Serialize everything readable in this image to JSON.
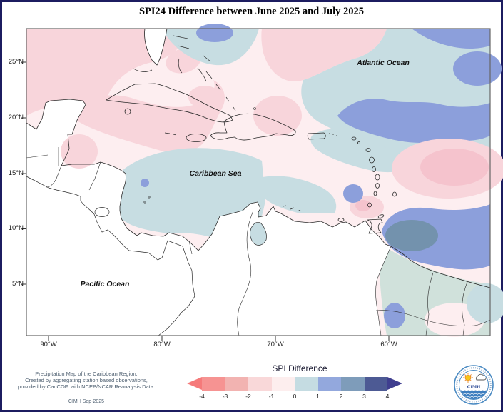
{
  "title": "SPI24 Difference between June 2025 and July 2025",
  "map": {
    "labels": {
      "atlantic": "Atlantic Ocean",
      "caribbean": "Caribbean Sea",
      "pacific": "Pacific Ocean"
    },
    "lat_ticks": [
      "25°N",
      "20°N",
      "15°N",
      "10°N",
      "5°N"
    ],
    "lon_ticks": [
      "90°W",
      "80°W",
      "70°W",
      "60°W"
    ]
  },
  "legend": {
    "title": "SPI Difference",
    "ticks": [
      "-4",
      "-3",
      "-2",
      "-1",
      "0",
      "1",
      "2",
      "3",
      "4"
    ],
    "segments": [
      "#f69392",
      "#f2b3b1",
      "#f9d8d9",
      "#fdeeee",
      "#c5dce2",
      "#93a8dd",
      "#7e9cba",
      "#4d5a94"
    ],
    "arrow_left": "#f57a7a",
    "arrow_right": "#3f3e8f"
  },
  "field_colors": {
    "base": "#fdeef0",
    "pink": "#f8d5db",
    "pink2": "#f5c3cd",
    "lblue": "#c7dde2",
    "peri": "#8c9fdb",
    "steel": "#7392ad",
    "teal": "#d0e1db",
    "white": "#ffffff"
  },
  "footer": {
    "lines": [
      "Precipitation Map of the Caribbean Region.",
      "Created by aggregating station based observations,",
      "provided by CariCOF, with NCEP/NCAR Reanalysis Data."
    ],
    "stamp": "CIMH Sep-2025"
  },
  "logo": {
    "text": "CIMH"
  }
}
